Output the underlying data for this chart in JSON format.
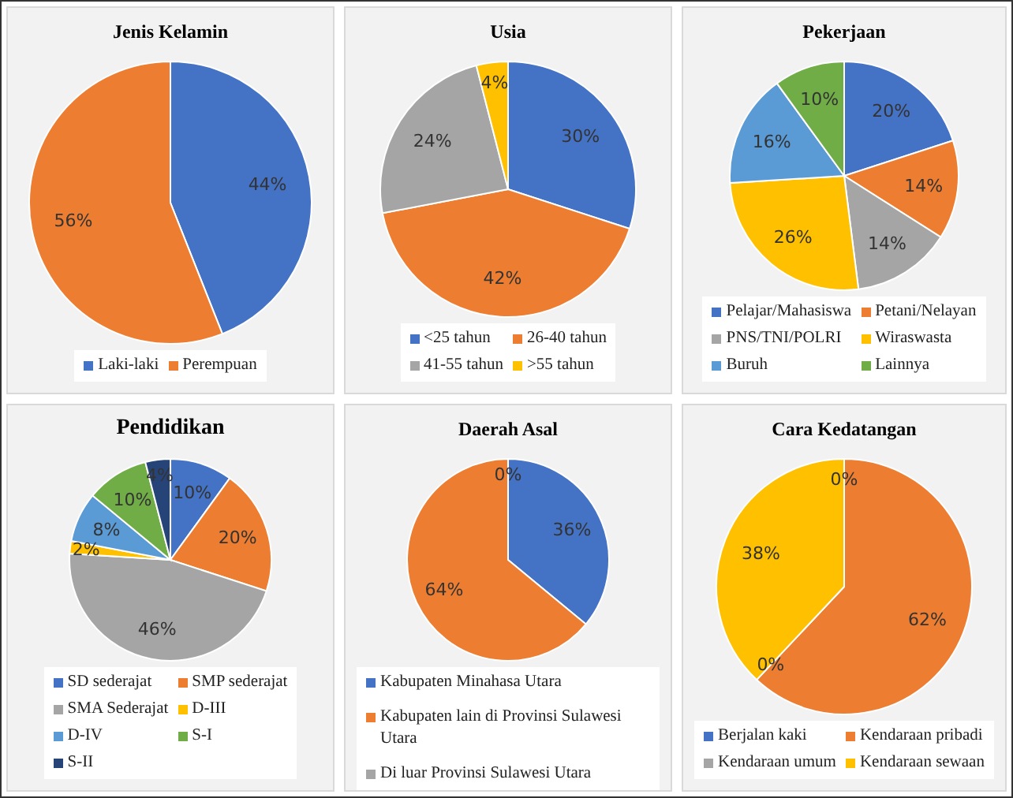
{
  "chart_data": [
    {
      "type": "pie",
      "title": "Jenis Kelamin",
      "categories": [
        "Laki-laki",
        "Perempuan"
      ],
      "values": [
        44,
        56
      ],
      "value_labels": [
        "44%",
        "56%"
      ],
      "colors": [
        "#4472c4",
        "#ed7d31"
      ],
      "legend": "bottom"
    },
    {
      "type": "pie",
      "title": "Usia",
      "categories": [
        "<25 tahun",
        "26-40 tahun",
        "41-55 tahun",
        ">55 tahun"
      ],
      "values": [
        30,
        42,
        24,
        4
      ],
      "value_labels": [
        "30%",
        "42%",
        "24%",
        "4%"
      ],
      "colors": [
        "#4472c4",
        "#ed7d31",
        "#a5a5a5",
        "#ffc000"
      ],
      "legend": "bottom"
    },
    {
      "type": "pie",
      "title": "Pekerjaan",
      "categories": [
        "Pelajar/Mahasiswa",
        "Petani/Nelayan",
        "PNS/TNI/POLRI",
        "Wiraswasta",
        "Buruh",
        "Lainnya"
      ],
      "values": [
        20,
        14,
        14,
        26,
        16,
        10
      ],
      "value_labels": [
        "20%",
        "14%",
        "14%",
        "26%",
        "16%",
        "10%"
      ],
      "colors": [
        "#4472c4",
        "#ed7d31",
        "#a5a5a5",
        "#ffc000",
        "#5b9bd5",
        "#70ad47"
      ],
      "legend": "bottom"
    },
    {
      "type": "pie",
      "title": "Pendidikan",
      "categories": [
        "SD sederajat",
        "SMP sederajat",
        "SMA Sederajat",
        "D-III",
        "D-IV",
        "S-I",
        "S-II"
      ],
      "values": [
        10,
        20,
        46,
        2,
        8,
        10,
        4
      ],
      "value_labels": [
        "10%",
        "20%",
        "46%",
        "2%",
        "8%",
        "10%",
        "4%"
      ],
      "colors": [
        "#4472c4",
        "#ed7d31",
        "#a5a5a5",
        "#ffc000",
        "#5b9bd5",
        "#70ad47",
        "#264478"
      ],
      "legend": "bottom"
    },
    {
      "type": "pie",
      "title": "Daerah Asal",
      "categories": [
        "Kabupaten Minahasa Utara",
        "Kabupaten lain di Provinsi Sulawesi Utara",
        "Di luar Provinsi Sulawesi Utara"
      ],
      "values": [
        36,
        64,
        0
      ],
      "value_labels": [
        "36%",
        "64%",
        "0%"
      ],
      "colors": [
        "#4472c4",
        "#ed7d31",
        "#a5a5a5"
      ],
      "legend": "bottom"
    },
    {
      "type": "pie",
      "title": "Cara Kedatangan",
      "categories": [
        "Berjalan kaki",
        "Kendaraan pribadi",
        "Kendaraan umum",
        "Kendaraan sewaan"
      ],
      "values": [
        0,
        62,
        0,
        38
      ],
      "value_labels": [
        "0%",
        "62%",
        "0%",
        "38%"
      ],
      "colors": [
        "#4472c4",
        "#ed7d31",
        "#a5a5a5",
        "#ffc000"
      ],
      "legend": "bottom"
    }
  ]
}
